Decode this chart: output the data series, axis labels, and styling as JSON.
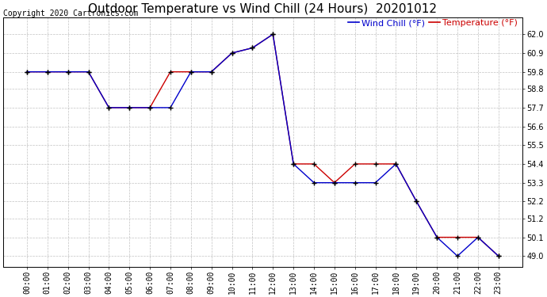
{
  "title": "Outdoor Temperature vs Wind Chill (24 Hours)  20201012",
  "copyright": "Copyright 2020 Cartronics.com",
  "legend_wind_chill": "Wind Chill (°F)",
  "legend_temperature": "Temperature (°F)",
  "hours": [
    "00:00",
    "01:00",
    "02:00",
    "03:00",
    "04:00",
    "05:00",
    "06:00",
    "07:00",
    "08:00",
    "09:00",
    "10:00",
    "11:00",
    "12:00",
    "13:00",
    "14:00",
    "15:00",
    "16:00",
    "17:00",
    "18:00",
    "19:00",
    "20:00",
    "21:00",
    "22:00",
    "23:00"
  ],
  "temperature": [
    59.8,
    59.8,
    59.8,
    59.8,
    57.7,
    57.7,
    57.7,
    59.8,
    59.8,
    59.8,
    60.9,
    61.2,
    62.0,
    54.4,
    54.4,
    53.3,
    54.4,
    54.4,
    54.4,
    52.2,
    50.1,
    50.1,
    50.1,
    49.0
  ],
  "wind_chill": [
    59.8,
    59.8,
    59.8,
    59.8,
    57.7,
    57.7,
    57.7,
    57.7,
    59.8,
    59.8,
    60.9,
    61.2,
    62.0,
    54.4,
    53.3,
    53.3,
    53.3,
    53.3,
    54.4,
    52.2,
    50.1,
    49.0,
    50.1,
    49.0
  ],
  "ylim_min": 48.35,
  "ylim_max": 63.0,
  "yticks": [
    49.0,
    50.1,
    51.2,
    52.2,
    53.3,
    54.4,
    55.5,
    56.6,
    57.7,
    58.8,
    59.8,
    60.9,
    62.0
  ],
  "temperature_color": "#cc0000",
  "wind_chill_color": "#0000cc",
  "background_color": "#ffffff",
  "grid_color": "#bbbbbb",
  "title_fontsize": 11,
  "tick_fontsize": 7,
  "copyright_fontsize": 7
}
